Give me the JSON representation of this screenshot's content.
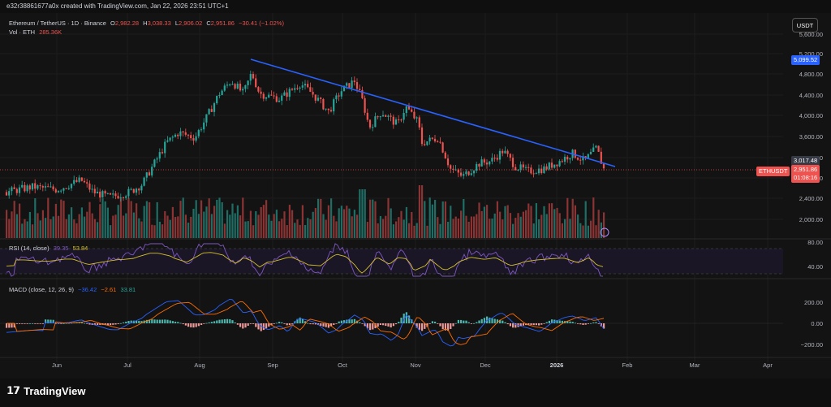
{
  "header": {
    "text": "e32r38861677a0x created with TradingView.com, Jan 22, 2026 23:51 UTC+1"
  },
  "legend": {
    "symbol": "Ethereum / TetherUS · 1D · Binance",
    "open_label": "O",
    "open": "2,982.28",
    "high_label": "H",
    "high": "3,038.33",
    "low_label": "L",
    "low": "2,906.02",
    "close_label": "C",
    "close": "2,951.86",
    "change": "−30.41 (−1.02%)",
    "vol_label": "Vol · ETH",
    "vol": "285.36K"
  },
  "rsi_legend": {
    "label": "RSI (14, close)",
    "v1": "39.35",
    "v2": "53.84"
  },
  "macd_legend": {
    "label": "MACD (close, 12, 26, 9)",
    "v1": "−36.42",
    "v2": "−2.61",
    "v3": "33.81"
  },
  "currency_button": "USDT",
  "price_axis": [
    "5,600.00",
    "5,200.00",
    "4,800.00",
    "4,400.00",
    "4,000.00",
    "3,600.00",
    "3,200.00",
    "2,800.00",
    "2,400.00",
    "2,000.00"
  ],
  "rsi_axis": [
    "80.00",
    "40.00"
  ],
  "macd_axis": [
    "200.00",
    "0.00",
    "−200.00"
  ],
  "badges": {
    "trend": "5,099.52",
    "upper": "3,017.48",
    "price": "2,951.86",
    "countdown": "01:08:16",
    "symbol": "ETHUSDT"
  },
  "time_axis": [
    "Jun",
    "Jul",
    "Aug",
    "Sep",
    "Oct",
    "Nov",
    "Dec",
    "2026",
    "Feb",
    "Mar",
    "Apr"
  ],
  "brand": "TradingView",
  "colors": {
    "up": "#26a69a",
    "down": "#ef5350",
    "trend": "#2962ff",
    "rsi": "#7e57c2",
    "rsi_ma": "#d4c02a",
    "macd": "#2962ff",
    "signal": "#ff6d00"
  }
}
